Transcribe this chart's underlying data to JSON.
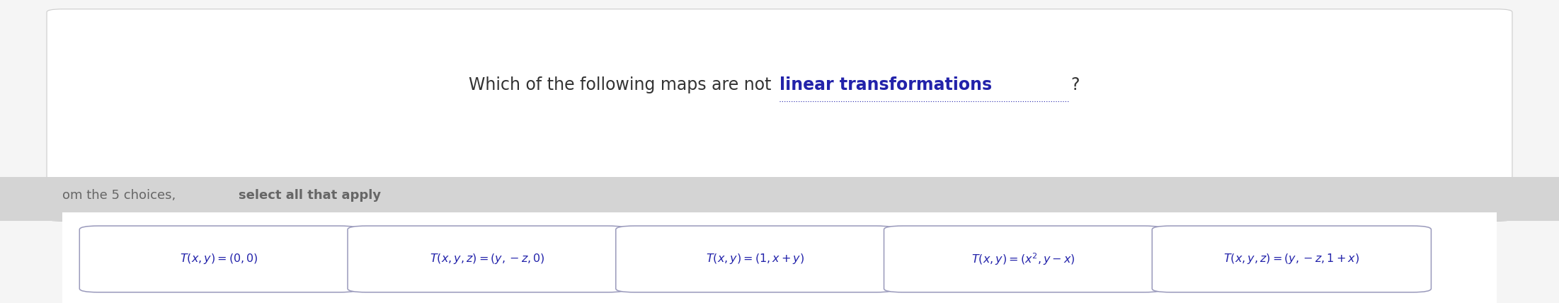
{
  "title_normal": "Which of the following maps are not ",
  "title_bold": "linear transformations",
  "title_suffix": "?",
  "title_fontsize": 17,
  "subtitle_normal": "om the 5 choices, ",
  "subtitle_bold": "select all that apply",
  "subtitle_fontsize": 13,
  "bg_color": "#f5f5f5",
  "card_border_color": "#9999bb",
  "stripe_color": "#d4d4d4",
  "title_color": "#333333",
  "bold_color": "#2222aa",
  "subtitle_color": "#666666",
  "choices_latex": [
    "$T(x, y) = (0, 0)$",
    "$T(x, y, z) = (y, -z, 0)$",
    "$T(x, y) = (1, x + y)$",
    "$T(x, y) = (x^2, y - x)$",
    "$T(x, y, z) = (y, -z, 1 + x)$"
  ],
  "figure_width": 22.02,
  "figure_height": 4.28,
  "dpi": 100
}
